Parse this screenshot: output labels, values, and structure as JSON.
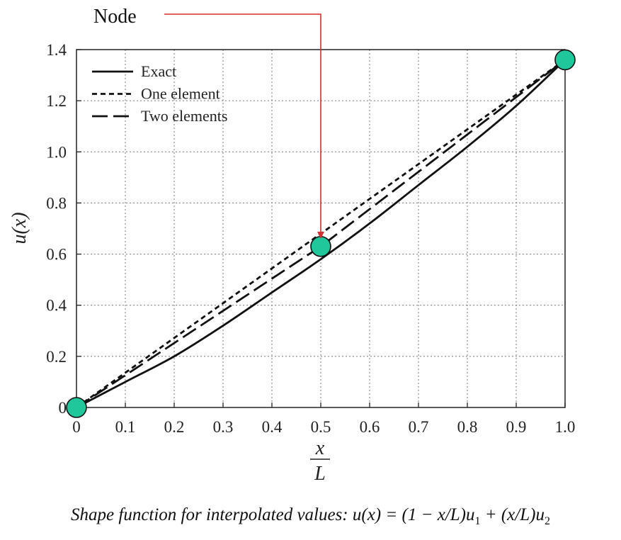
{
  "chart_data": {
    "type": "line",
    "xlim": [
      0,
      1.0
    ],
    "ylim": [
      0,
      1.4
    ],
    "xticks": [
      "0",
      "0.1",
      "0.2",
      "0.3",
      "0.4",
      "0.5",
      "0.6",
      "0.7",
      "0.8",
      "0.9",
      "1.0"
    ],
    "yticks": [
      "0",
      "0.2",
      "0.4",
      "0.6",
      "0.8",
      "1.0",
      "1.2",
      "1.4"
    ],
    "xlabel_num": "x",
    "xlabel_den": "L",
    "ylabel": "u(x)",
    "grid": true,
    "legend_position": "top-left",
    "series": [
      {
        "name": "Exact",
        "style": "solid",
        "x": [
          0,
          0.1,
          0.2,
          0.3,
          0.4,
          0.5,
          0.6,
          0.7,
          0.8,
          0.9,
          1.0
        ],
        "y": [
          0,
          0.1,
          0.2,
          0.32,
          0.45,
          0.58,
          0.72,
          0.87,
          1.02,
          1.18,
          1.36
        ]
      },
      {
        "name": "One element",
        "style": "short-dash",
        "x": [
          0,
          1.0
        ],
        "y": [
          0,
          1.36
        ]
      },
      {
        "name": "Two elements",
        "style": "long-dash",
        "x": [
          0,
          0.5,
          1.0
        ],
        "y": [
          0,
          0.63,
          1.36
        ]
      }
    ],
    "nodes": [
      {
        "x": 0,
        "y": 0
      },
      {
        "x": 0.5,
        "y": 0.63
      },
      {
        "x": 1.0,
        "y": 1.36
      }
    ],
    "node_color": "#1fc79a",
    "annotation": {
      "text": "Node",
      "target_x": 0.5,
      "target_y": 0.66,
      "color": "#d32f2f"
    }
  },
  "caption": {
    "prefix": "Shape function for interpolated values: ",
    "formula": "u(x) = (1 − x/L)u",
    "sub1": "1",
    "middle": " + (x/L)u",
    "sub2": "2"
  }
}
